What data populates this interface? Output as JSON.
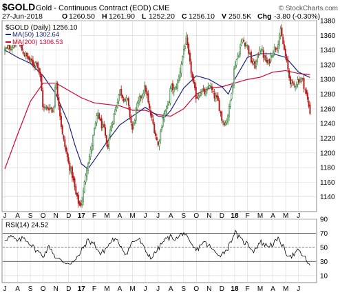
{
  "header": {
    "symbol": "$GOLD",
    "description": "Gold - Continuous Contract (EOD)",
    "exchange": "CME",
    "copyright": "© StockCharts.com",
    "date": "27-Jun-2018",
    "quote": [
      {
        "label": "O",
        "value": "1260.50"
      },
      {
        "label": "H",
        "value": "1261.90"
      },
      {
        "label": "L",
        "value": "1252.20"
      },
      {
        "label": "C",
        "value": "1256.10"
      },
      {
        "label": "V",
        "value": "250.5K"
      },
      {
        "label": "Chg",
        "value": "-3.80 (-0.30%)"
      }
    ]
  },
  "colors": {
    "up": "#2e7d32",
    "down": "#b71c1c",
    "ma50": "#1a237e",
    "ma200": "#d50032",
    "grid": "#d8d8d8",
    "rsi_line": "#000000"
  },
  "chart_data": [
    {
      "type": "candlestick",
      "title": "$GOLD (Daily) 1256.10",
      "legend": [
        {
          "label": "MA(50) 1302.64",
          "color": "#1a237e"
        },
        {
          "label": "MA(200) 1306.53",
          "color": "#d50032"
        }
      ],
      "legend_position": "top-left",
      "grid": true,
      "ylim": [
        1120,
        1380
      ],
      "y_ticks": [
        1140,
        1160,
        1180,
        1200,
        1220,
        1240,
        1260,
        1280,
        1300,
        1320,
        1340,
        1360,
        1380
      ],
      "x_labels": [
        "J",
        "A",
        "S",
        "O",
        "N",
        "D",
        "17",
        "F",
        "M",
        "A",
        "M",
        "J",
        "J",
        "A",
        "S",
        "O",
        "N",
        "D",
        "18",
        "F",
        "M",
        "A",
        "M",
        "J"
      ],
      "x_label_positions_month": [
        0,
        1,
        2,
        3,
        4,
        5,
        6,
        7,
        8,
        9,
        10,
        11,
        12,
        13,
        14,
        15,
        16,
        17,
        18,
        19,
        20,
        21,
        22,
        23
      ],
      "price_path_month": [
        [
          0,
          1340
        ],
        [
          0.5,
          1345
        ],
        [
          1,
          1352
        ],
        [
          1.5,
          1335
        ],
        [
          2,
          1325
        ],
        [
          2.3,
          1320
        ],
        [
          2.5,
          1325
        ],
        [
          2.8,
          1300
        ],
        [
          3,
          1260
        ],
        [
          3.5,
          1262
        ],
        [
          3.8,
          1258
        ],
        [
          4,
          1300
        ],
        [
          4.2,
          1270
        ],
        [
          4.5,
          1225
        ],
        [
          5,
          1185
        ],
        [
          5.3,
          1168
        ],
        [
          5.6,
          1140
        ],
        [
          5.9,
          1127
        ],
        [
          6.1,
          1140
        ],
        [
          6.4,
          1180
        ],
        [
          6.7,
          1200
        ],
        [
          7,
          1230
        ],
        [
          7.3,
          1255
        ],
        [
          7.5,
          1240
        ],
        [
          7.8,
          1230
        ],
        [
          8,
          1205
        ],
        [
          8.3,
          1235
        ],
        [
          8.6,
          1255
        ],
        [
          9,
          1285
        ],
        [
          9.3,
          1275
        ],
        [
          9.6,
          1270
        ],
        [
          10,
          1230
        ],
        [
          10.3,
          1260
        ],
        [
          10.6,
          1275
        ],
        [
          11,
          1290
        ],
        [
          11.3,
          1260
        ],
        [
          11.6,
          1240
        ],
        [
          12,
          1210
        ],
        [
          12.4,
          1250
        ],
        [
          12.8,
          1265
        ],
        [
          13,
          1290
        ],
        [
          13.3,
          1285
        ],
        [
          13.6,
          1300
        ],
        [
          14,
          1340
        ],
        [
          14.2,
          1355
        ],
        [
          14.5,
          1320
        ],
        [
          14.8,
          1290
        ],
        [
          15,
          1275
        ],
        [
          15.4,
          1285
        ],
        [
          15.8,
          1280
        ],
        [
          16,
          1295
        ],
        [
          16.3,
          1280
        ],
        [
          16.7,
          1270
        ],
        [
          17,
          1245
        ],
        [
          17.3,
          1240
        ],
        [
          17.6,
          1262
        ],
        [
          18,
          1320
        ],
        [
          18.3,
          1335
        ],
        [
          18.6,
          1355
        ],
        [
          19,
          1345
        ],
        [
          19.3,
          1325
        ],
        [
          19.6,
          1318
        ],
        [
          20,
          1345
        ],
        [
          20.3,
          1330
        ],
        [
          20.6,
          1320
        ],
        [
          21,
          1340
        ],
        [
          21.3,
          1345
        ],
        [
          21.6,
          1365
        ],
        [
          22,
          1330
        ],
        [
          22.3,
          1300
        ],
        [
          22.6,
          1290
        ],
        [
          23,
          1300
        ],
        [
          23.3,
          1300
        ],
        [
          23.6,
          1280
        ],
        [
          23.9,
          1256
        ]
      ],
      "ma50_month": [
        [
          0,
          1340
        ],
        [
          1,
          1330
        ],
        [
          2,
          1322
        ],
        [
          3,
          1305
        ],
        [
          4,
          1280
        ],
        [
          5,
          1240
        ],
        [
          5.5,
          1210
        ],
        [
          6,
          1185
        ],
        [
          6.5,
          1178
        ],
        [
          7,
          1190
        ],
        [
          8,
          1215
        ],
        [
          9,
          1238
        ],
        [
          10,
          1250
        ],
        [
          11,
          1262
        ],
        [
          12,
          1250
        ],
        [
          12.5,
          1248
        ],
        [
          13,
          1258
        ],
        [
          14,
          1288
        ],
        [
          15,
          1305
        ],
        [
          16,
          1300
        ],
        [
          17,
          1290
        ],
        [
          17.5,
          1280
        ],
        [
          18,
          1300
        ],
        [
          19,
          1330
        ],
        [
          20,
          1335
        ],
        [
          21,
          1335
        ],
        [
          22,
          1330
        ],
        [
          23,
          1310
        ],
        [
          23.9,
          1302.64
        ]
      ],
      "ma200_month": [
        [
          0,
          1178
        ],
        [
          1,
          1225
        ],
        [
          2,
          1270
        ],
        [
          3,
          1295
        ],
        [
          4,
          1295
        ],
        [
          5,
          1285
        ],
        [
          6,
          1275
        ],
        [
          7,
          1268
        ],
        [
          8,
          1266
        ],
        [
          9,
          1264
        ],
        [
          10,
          1258
        ],
        [
          11,
          1258
        ],
        [
          12,
          1252
        ],
        [
          13,
          1250
        ],
        [
          14,
          1260
        ],
        [
          15,
          1280
        ],
        [
          16,
          1288
        ],
        [
          17,
          1290
        ],
        [
          18,
          1295
        ],
        [
          19,
          1300
        ],
        [
          20,
          1303
        ],
        [
          21,
          1310
        ],
        [
          22,
          1312
        ],
        [
          23,
          1308
        ],
        [
          23.9,
          1306.53
        ]
      ]
    },
    {
      "type": "line",
      "title": "RSI(14) 24.52",
      "grid": true,
      "ylim": [
        0,
        90
      ],
      "y_ticks": [
        10,
        30,
        50,
        70,
        90
      ],
      "reference_lines": [
        30,
        50,
        70
      ],
      "x_labels": [
        "J",
        "A",
        "S",
        "O",
        "N",
        "D",
        "17",
        "F",
        "M",
        "A",
        "M",
        "J",
        "J",
        "A",
        "S",
        "O",
        "N",
        "D",
        "18",
        "F",
        "M",
        "A",
        "M",
        "J"
      ],
      "rsi_path_month": [
        [
          0,
          62
        ],
        [
          0.5,
          65
        ],
        [
          1,
          58
        ],
        [
          1.5,
          64
        ],
        [
          2,
          55
        ],
        [
          2.5,
          45
        ],
        [
          3,
          38
        ],
        [
          3.5,
          52
        ],
        [
          4,
          35
        ],
        [
          4.5,
          30
        ],
        [
          5,
          28
        ],
        [
          5.5,
          30
        ],
        [
          6,
          45
        ],
        [
          6.5,
          60
        ],
        [
          7,
          55
        ],
        [
          7.5,
          40
        ],
        [
          8,
          50
        ],
        [
          8.5,
          62
        ],
        [
          9,
          55
        ],
        [
          9.5,
          40
        ],
        [
          10,
          58
        ],
        [
          10.5,
          62
        ],
        [
          11,
          45
        ],
        [
          11.5,
          35
        ],
        [
          12,
          48
        ],
        [
          12.5,
          60
        ],
        [
          13,
          65
        ],
        [
          13.5,
          62
        ],
        [
          14,
          72
        ],
        [
          14.5,
          55
        ],
        [
          15,
          45
        ],
        [
          15.5,
          58
        ],
        [
          16,
          52
        ],
        [
          16.5,
          42
        ],
        [
          17,
          40
        ],
        [
          17.5,
          50
        ],
        [
          18,
          72
        ],
        [
          18.5,
          60
        ],
        [
          19,
          55
        ],
        [
          19.5,
          45
        ],
        [
          20,
          58
        ],
        [
          20.5,
          52
        ],
        [
          21,
          55
        ],
        [
          21.5,
          62
        ],
        [
          22,
          42
        ],
        [
          22.5,
          38
        ],
        [
          23,
          45
        ],
        [
          23.5,
          35
        ],
        [
          23.9,
          24.52
        ]
      ]
    }
  ]
}
